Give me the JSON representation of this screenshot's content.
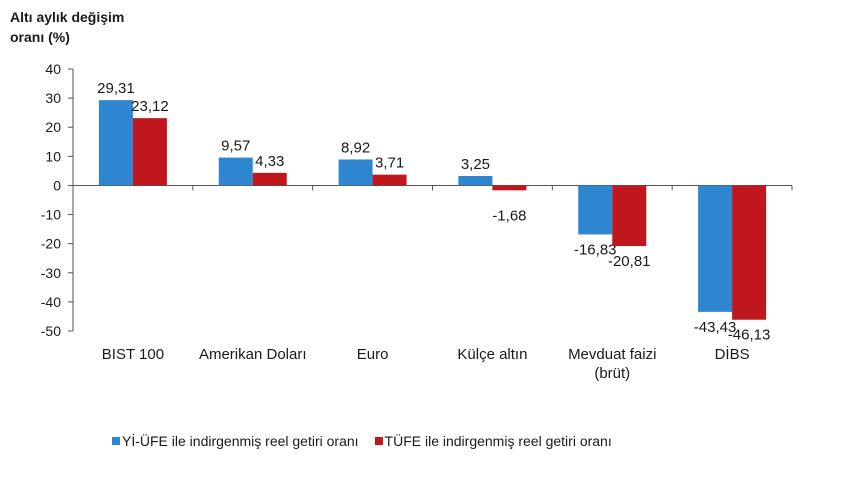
{
  "chart_data": {
    "type": "bar",
    "ylabel_lines": [
      "Altı aylık değişim",
      "oranı (%)"
    ],
    "ylim": [
      -50,
      40
    ],
    "yticks": [
      40,
      30,
      20,
      10,
      0,
      -10,
      -20,
      -30,
      -40,
      -50
    ],
    "categories": [
      [
        "BIST 100"
      ],
      [
        "Amerikan Doları"
      ],
      [
        "Euro"
      ],
      [
        "Külçe altın"
      ],
      [
        "Mevduat faizi",
        "(brüt)"
      ],
      [
        "DİBS"
      ]
    ],
    "series": [
      {
        "name": "Yİ-ÜFE ile indirgenmiş reel getiri oranı",
        "color": "#2E86D1",
        "values": [
          29.31,
          9.57,
          8.92,
          3.25,
          -16.83,
          -43.43
        ],
        "labels": [
          "29,31",
          "9,57",
          "8,92",
          "3,25",
          "-16,83",
          "-43,43"
        ]
      },
      {
        "name": "TÜFE ile indirgenmiş reel getiri oranı",
        "color": "#C0161D",
        "values": [
          23.12,
          4.33,
          3.71,
          -1.68,
          -20.81,
          -46.13
        ],
        "labels": [
          "23,12",
          "4,33",
          "3,71",
          "-1,68",
          "-20,81",
          "-46,13"
        ]
      }
    ],
    "grid": false,
    "legend_position": "bottom"
  }
}
